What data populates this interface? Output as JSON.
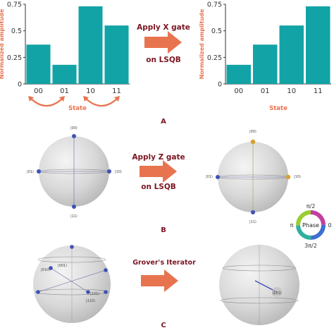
{
  "chart_data": [
    {
      "type": "bar",
      "categories": [
        "00",
        "01",
        "10",
        "11"
      ],
      "values": [
        0.37,
        0.18,
        0.73,
        0.55
      ],
      "xlabel": "State",
      "ylabel": "Normalized amplitude",
      "yticks": [
        "0",
        "0.25",
        "0.5",
        "0.75"
      ],
      "ylim": [
        0,
        0.75
      ],
      "color": "#12a3a6"
    },
    {
      "type": "bar",
      "categories": [
        "00",
        "01",
        "10",
        "11"
      ],
      "values": [
        0.18,
        0.37,
        0.55,
        0.73
      ],
      "xlabel": "State",
      "ylabel": "Normalized amplitude",
      "yticks": [
        "0",
        "0.25",
        "0.5",
        "0.75"
      ],
      "ylim": [
        0,
        0.75
      ],
      "color": "#12a3a6"
    }
  ],
  "panels": {
    "a": {
      "letter": "A",
      "gate_line1": "Apply X gate",
      "gate_line2": "on LSQB"
    },
    "b": {
      "letter": "B",
      "gate_line1": "Apply Z gate",
      "gate_line2": "on LSQB",
      "left_kets": {
        "top": "|00⟩",
        "left": "|01⟩",
        "right": "|10⟩",
        "bottom": "|11⟩"
      },
      "right_kets": {
        "top": "|00⟩",
        "left": "|01⟩",
        "right": "|10⟩",
        "bottom": "|11⟩"
      },
      "phase_wheel": {
        "center": "Phase",
        "top": "π/2",
        "left": "π",
        "right": "0",
        "bottom": "3π/2"
      }
    },
    "c": {
      "letter": "C",
      "gate_line1": "Grover's Iterator",
      "left_kets": {
        "k001": "|001⟩",
        "k010": "|010⟩",
        "k101": "|101⟩",
        "k110": "|110⟩"
      },
      "right_ket": "|101⟩"
    }
  },
  "colors": {
    "bar": "#12a3a6",
    "orange": "#e8744f",
    "gate_text": "#7b1522",
    "sphere_dot": "#3f51b5",
    "sphere_dot_gold": "#d8a12b",
    "sphere_fill": "#d9d9d9"
  }
}
